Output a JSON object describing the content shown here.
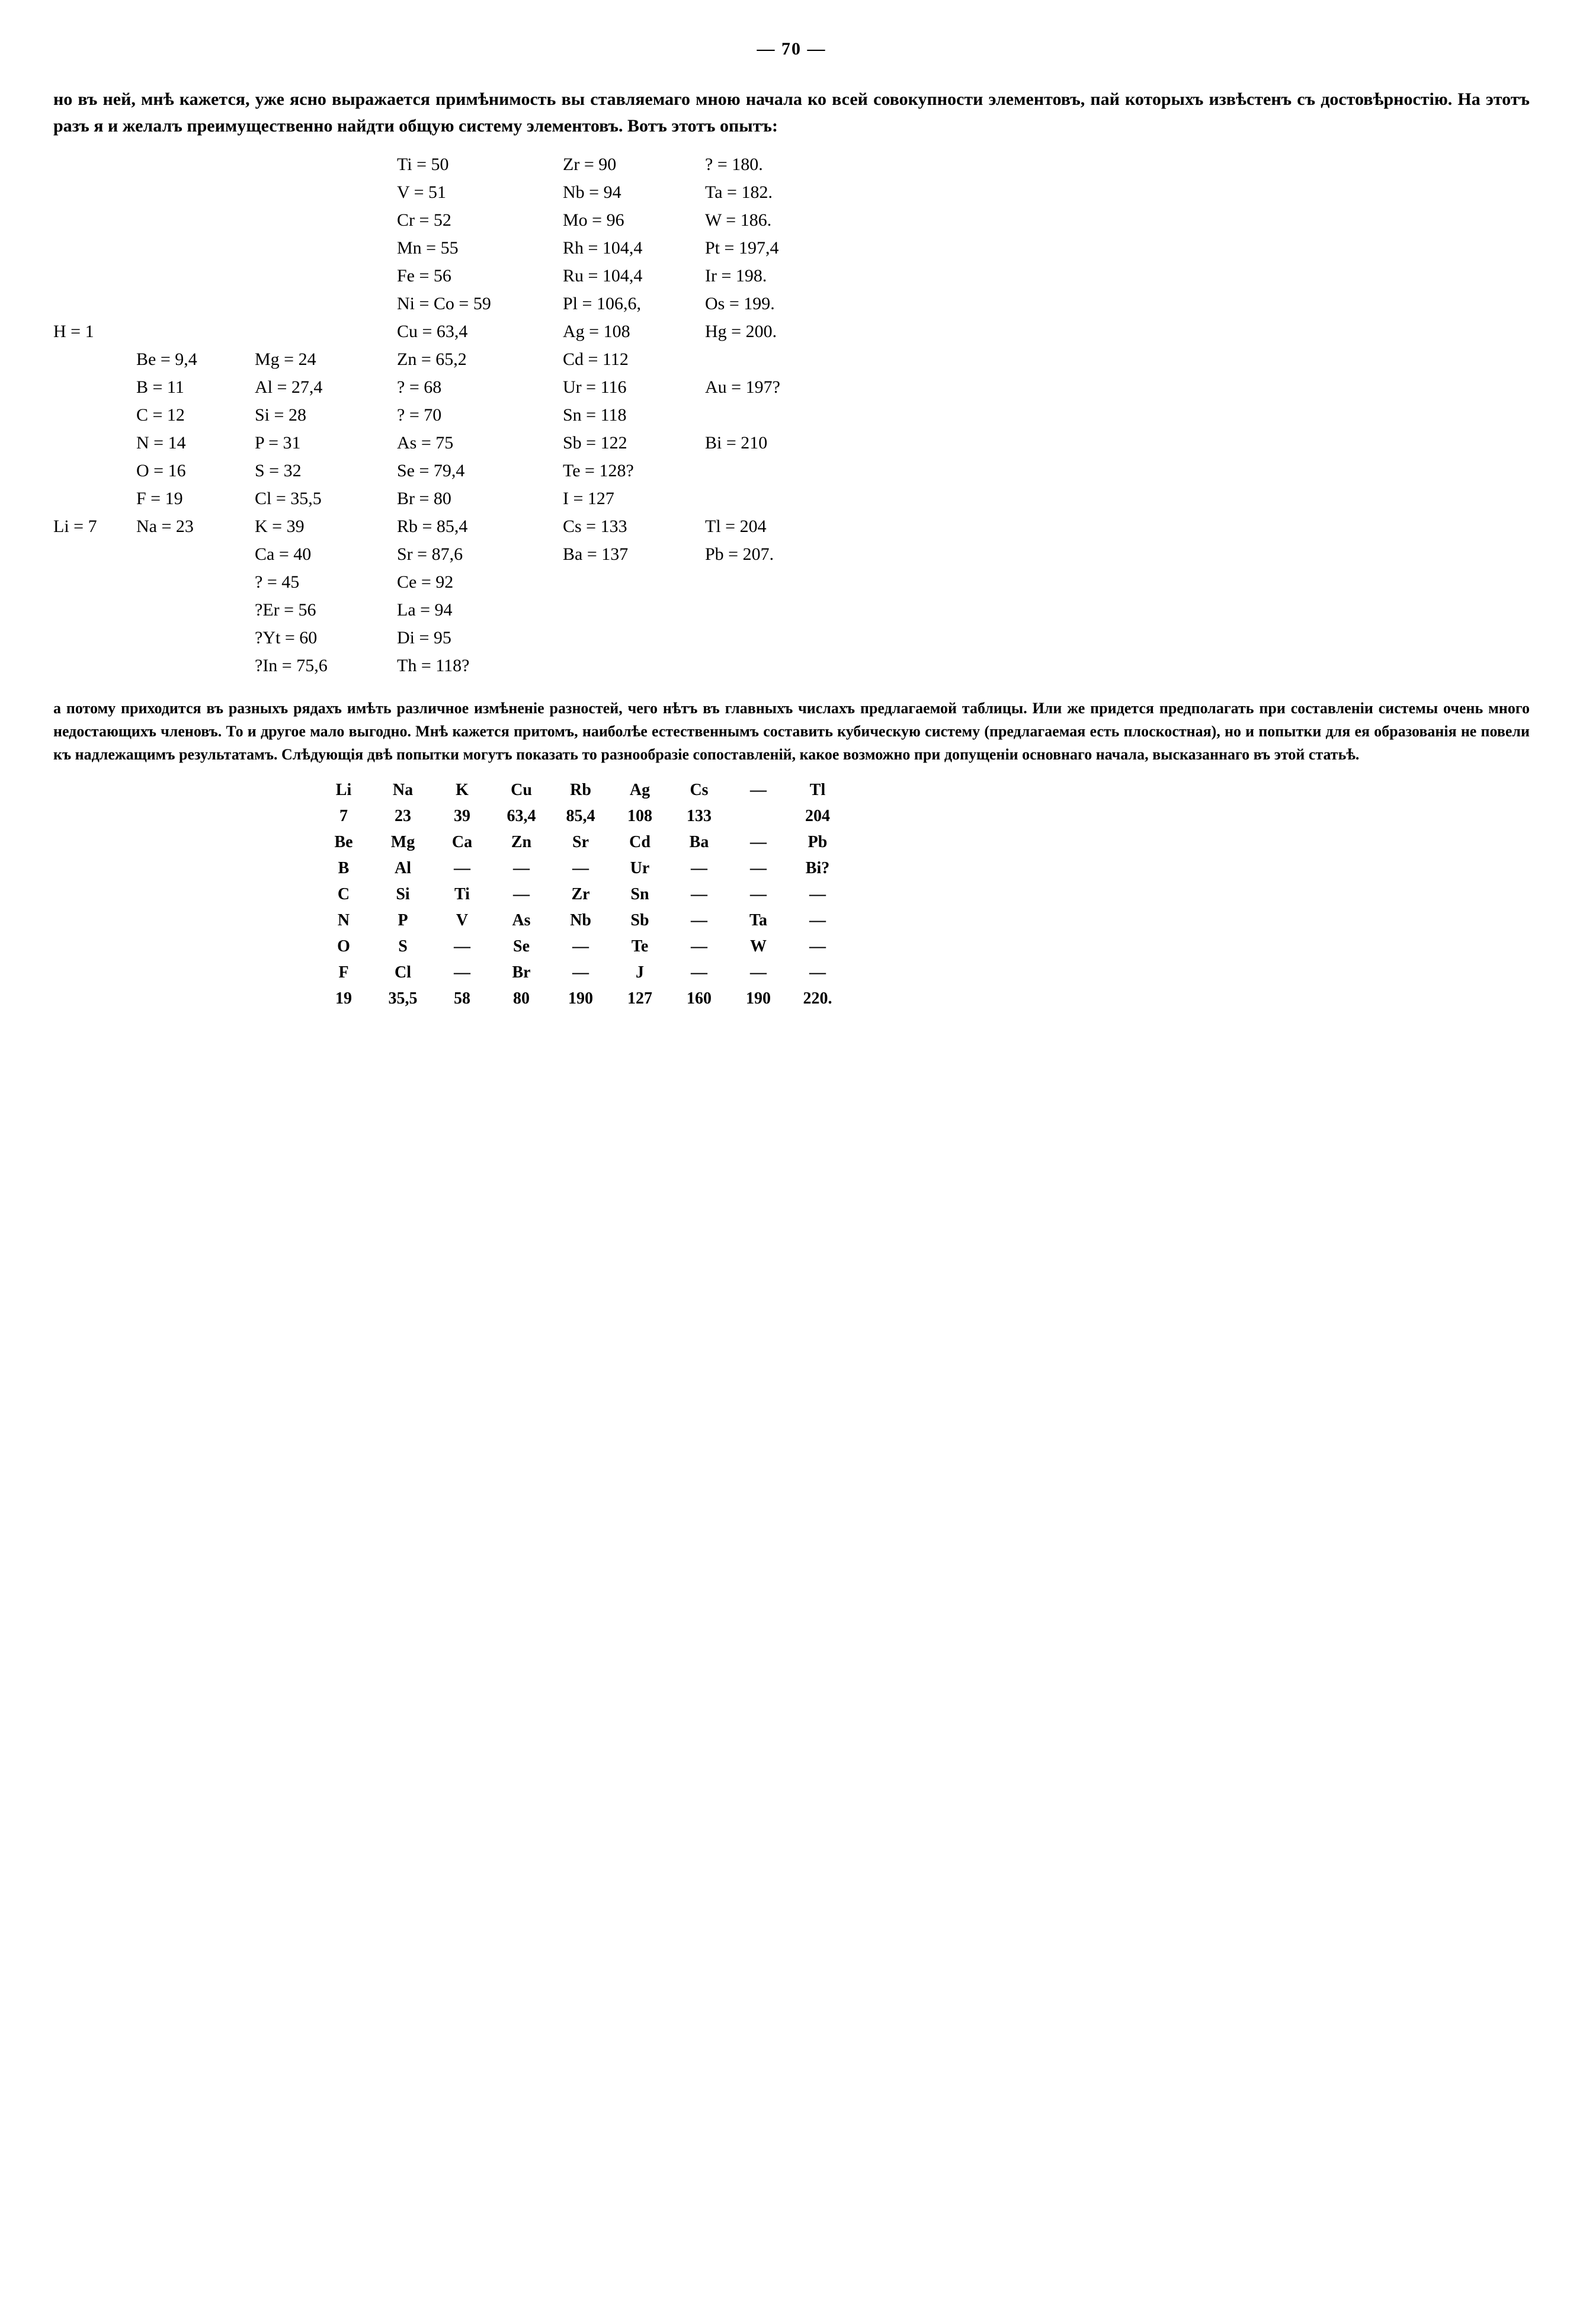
{
  "page_number": "— 70 —",
  "para1": "но въ ней, мнѣ кажется, уже ясно выражается примѣнимость вы ставляемаго мною начала ко всей совокупности элементовъ, пай которыхъ извѣстенъ съ достовѣрностію. На этотъ разъ я и желалъ преимущественно найдти общую систему элементовъ. Вотъ этотъ опытъ:",
  "para2": "а потому приходится въ разныхъ рядахъ имѣть различное измѣненіе разностей, чего нѣтъ въ главныхъ числахъ предлагаемой таблицы. Или же придется предполагать при составленіи системы очень много недостающихъ членовъ. То и другое мало выгодно. Мнѣ кажется притомъ, наиболѣе естественнымъ составить кубическую систему (предлагаемая есть плоскостная), но и попытки для ея образованія не повели къ надлежащимъ результатамъ. Слѣдующія двѣ попытки могутъ показать то разнообразіе сопоставленій, какое возможно при допущеніи основнаго начала, высказаннаго въ этой статьѣ.",
  "periodic_table": {
    "rows": [
      [
        "",
        "",
        "",
        "Ti = 50",
        "Zr = 90",
        "? = 180."
      ],
      [
        "",
        "",
        "",
        "V = 51",
        "Nb = 94",
        "Ta = 182."
      ],
      [
        "",
        "",
        "",
        "Cr = 52",
        "Mo = 96",
        "W = 186."
      ],
      [
        "",
        "",
        "",
        "Mn = 55",
        "Rh = 104,4",
        "Pt = 197,4"
      ],
      [
        "",
        "",
        "",
        "Fe = 56",
        "Ru = 104,4",
        "Ir = 198."
      ],
      [
        "",
        "",
        "",
        "Ni = Co = 59",
        "Pl = 106,6,",
        "Os = 199."
      ],
      [
        "H = 1",
        "",
        "",
        "Cu = 63,4",
        "Ag = 108",
        "Hg = 200."
      ],
      [
        "",
        "Be = 9,4",
        "Mg = 24",
        "Zn = 65,2",
        "Cd = 112",
        ""
      ],
      [
        "",
        "B = 11",
        "Al = 27,4",
        "? = 68",
        "Ur = 116",
        "Au = 197?"
      ],
      [
        "",
        "C = 12",
        "Si = 28",
        "? = 70",
        "Sn = 118",
        ""
      ],
      [
        "",
        "N = 14",
        "P = 31",
        "As = 75",
        "Sb = 122",
        "Bi = 210"
      ],
      [
        "",
        "O = 16",
        "S = 32",
        "Se = 79,4",
        "Te = 128?",
        ""
      ],
      [
        "",
        "F = 19",
        "Cl = 35,5",
        "Br = 80",
        "I = 127",
        ""
      ],
      [
        "Li = 7",
        "Na = 23",
        "K = 39",
        "Rb = 85,4",
        "Cs = 133",
        "Tl = 204"
      ],
      [
        "",
        "",
        "Ca = 40",
        "Sr = 87,6",
        "Ba = 137",
        "Pb = 207."
      ],
      [
        "",
        "",
        "? = 45",
        "Ce = 92",
        "",
        ""
      ],
      [
        "",
        "",
        "?Er = 56",
        "La = 94",
        "",
        ""
      ],
      [
        "",
        "",
        "?Yt = 60",
        "Di = 95",
        "",
        ""
      ],
      [
        "",
        "",
        "?In = 75,6",
        "Th = 118?",
        "",
        ""
      ]
    ]
  },
  "small_table": {
    "rows": [
      [
        "Li",
        "Na",
        "K",
        "Cu",
        "Rb",
        "Ag",
        "Cs",
        "—",
        "Tl"
      ],
      [
        "7",
        "23",
        "39",
        "63,4",
        "85,4",
        "108",
        "133",
        "",
        "204"
      ],
      [
        "Be",
        "Mg",
        "Ca",
        "Zn",
        "Sr",
        "Cd",
        "Ba",
        "—",
        "Pb"
      ],
      [
        "B",
        "Al",
        "—",
        "—",
        "—",
        "Ur",
        "—",
        "—",
        "Bi?"
      ],
      [
        "C",
        "Si",
        "Ti",
        "—",
        "Zr",
        "Sn",
        "—",
        "—",
        "—"
      ],
      [
        "N",
        "P",
        "V",
        "As",
        "Nb",
        "Sb",
        "—",
        "Ta",
        "—"
      ],
      [
        "O",
        "S",
        "—",
        "Se",
        "—",
        "Te",
        "—",
        "W",
        "—"
      ],
      [
        "F",
        "Cl",
        "—",
        "Br",
        "—",
        "J",
        "—",
        "—",
        "—"
      ],
      [
        "19",
        "35,5",
        "58",
        "80",
        "190",
        "127",
        "160",
        "190",
        "220."
      ]
    ]
  }
}
